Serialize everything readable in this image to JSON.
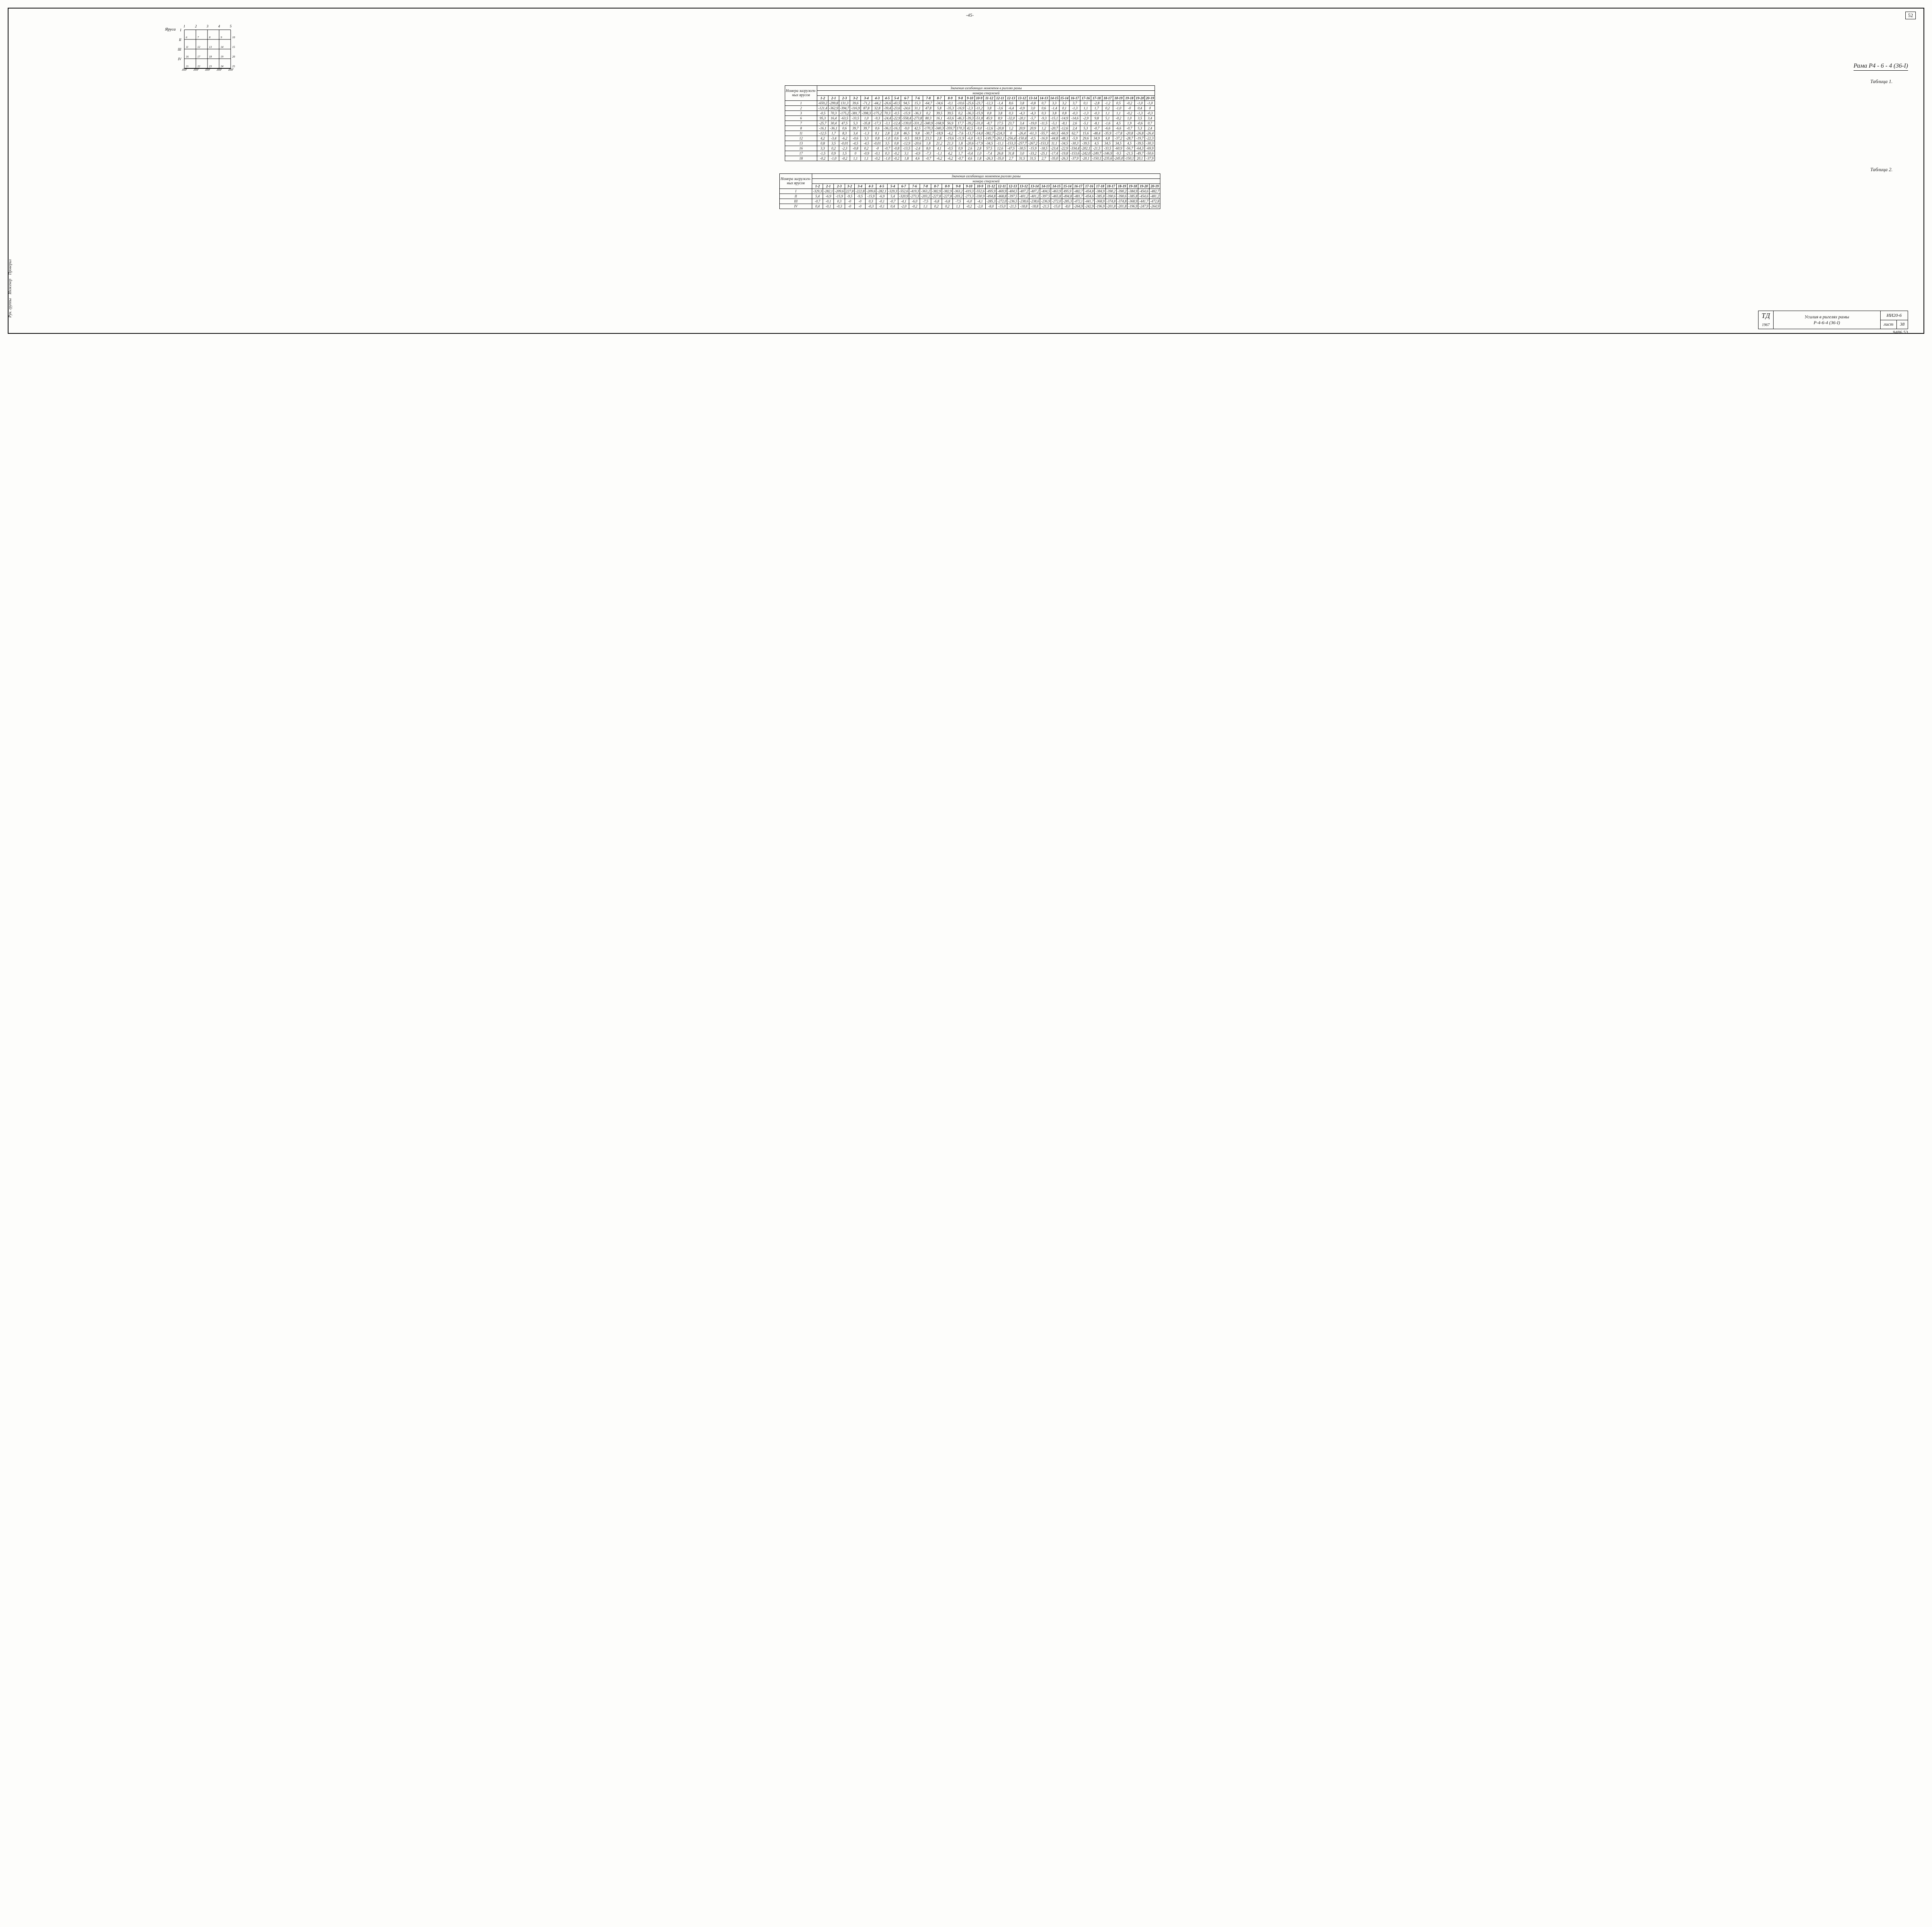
{
  "page_top": "-45-",
  "page_corner": "52",
  "frame_title": "Рама  Р4 - 6 - 4 (36-I)",
  "diagram": {
    "yarus_label": "Яруса",
    "rows": [
      "I",
      "II",
      "III",
      "IV"
    ],
    "top_nums": [
      "1",
      "2",
      "3",
      "4",
      "5"
    ],
    "cell_nums": [
      [
        "6",
        "7",
        "8",
        "9",
        "10"
      ],
      [
        "11",
        "12",
        "13",
        "14",
        "15"
      ],
      [
        "16",
        "17",
        "18",
        "19",
        "20"
      ],
      [
        "21",
        "22",
        "23",
        "24",
        "25"
      ]
    ]
  },
  "table_caption_1": "Таблица 1.",
  "table_caption_2": "Таблица 2.",
  "table_header_main_1": "Значения  изгибающих  моментов  в ригелях  рамы",
  "table_header_main_2": "Значения  изгибающих  моментов  ригелях  рамы",
  "table_header_sub": "номера  стержней",
  "rowhead_label": "Номера загружен-ных ярусов",
  "col_pairs": [
    "1-2",
    "2-1",
    "2-3",
    "3-2",
    "3-4",
    "4-3",
    "4-5",
    "5-4",
    "6-7",
    "7-6",
    "7-8",
    "8-7",
    "8-9",
    "9-8",
    "9-10",
    "10-9",
    "11-12",
    "12-11",
    "12-13",
    "13-12",
    "13-14",
    "14-13",
    "14-15",
    "15-14",
    "16-17",
    "17-16",
    "17-18",
    "18-17",
    "18-19",
    "19-18",
    "19-20",
    "20-19"
  ],
  "table1_rows": [
    {
      "k": "1",
      "v": [
        "-659,2",
        "-299,8",
        "131,3",
        "39,6",
        "-71,2",
        "-44,2",
        "-26,6",
        "-43,5",
        "94,5",
        "15,3",
        "-64,7",
        "-34,6",
        "-0,1",
        "-10,6",
        "-25,6",
        "-23,7",
        "-12,3",
        "-1,4",
        "8,6",
        "3,8",
        "-0,8",
        "0,7",
        "3,3",
        "3,2",
        "3,7",
        "0,1",
        "-2,8",
        "-1,2",
        "0,5",
        "-0,2",
        "-1,0",
        "-1,0"
      ]
    },
    {
      "k": "2",
      "v": [
        "-121,4",
        "-362,9",
        "-394,7",
        "-116,9",
        "87,8",
        "32,8",
        "-39,4",
        "-23,6",
        "-24,6",
        "31,1",
        "47,8",
        "5,8",
        "-35,3",
        "-16,9",
        "-2,3",
        "-11,2",
        "3,8",
        "-3,6",
        "-6,4",
        "-0,9",
        "3,0",
        "0,6",
        "-1,4",
        "0,1",
        "-1,3",
        "1,1",
        "1,7",
        "0,2",
        "-1,0",
        "-0",
        "0,4",
        "0"
      ]
    },
    {
      "k": "3",
      "v": [
        "-0,5",
        "70,3",
        "-175,2",
        "-381,7",
        "-398,3",
        "-175,2",
        "70,3",
        "-0,5",
        "-15,9",
        "-36,3",
        "0,2",
        "39,5",
        "39,5",
        "0,2",
        "-36,3",
        "-15,9",
        "0,8",
        "3,8",
        "0,3",
        "-4,3",
        "-4,3",
        "0,3",
        "3,8",
        "0,8",
        "-0,3",
        "-1,3",
        "-0,3",
        "1,1",
        "1,1",
        "-0,2",
        "-1,3",
        "-0,3"
      ]
    },
    {
      "k": "6",
      "v": [
        "95,3",
        "16,4",
        "-63,5",
        "-33,5",
        "1,0",
        "-9,3",
        "-24,4",
        "-22,9",
        "-558,4",
        "-273,8",
        "80,3",
        "16,1",
        "-63,6",
        "-46,3",
        "-39,3",
        "-51,8",
        "45,9",
        "8,9",
        "-32,0",
        "-20,1",
        "-5,7",
        "-9,3",
        "-15,1",
        "-14,9",
        "-14,6",
        "-2,9",
        "9,8",
        "5,1",
        "-0,2",
        "1,0",
        "3,5",
        "3,4"
      ]
    },
    {
      "k": "7",
      "v": [
        "-25,7",
        "30,4",
        "47,5",
        "5,3",
        "-35,8",
        "-17,3",
        "-3,1",
        "-12,4",
        "-139,0",
        "-331,2",
        "-340,9",
        "-168,9",
        "56,9",
        "17,7",
        "-39,2",
        "-31,0",
        "-8,7",
        "17,5",
        "23,7",
        "3,4",
        "-19,0",
        "-11,5",
        "-5,1",
        "-8,1",
        "2,6",
        "-5,1",
        "-8,1",
        "-1,6",
        "4,5",
        "1,9",
        "-0,6",
        "0,7"
      ]
    },
    {
      "k": "8",
      "v": [
        "-16,1",
        "-36,1",
        "0,6",
        "39,7",
        "39,7",
        "0,6",
        "-36,1",
        "-16,1",
        "-9,0",
        "42,5",
        "-170,3",
        "-340,3",
        "-359,7",
        "170,3",
        "42,5",
        "-9,0",
        "-12,6",
        "-20,8",
        "1,2",
        "20,9",
        "20,9",
        "1,2",
        "-20,7",
        "-12,6",
        "2,4",
        "5,3",
        "-0,7",
        "-6,6",
        "-6,6",
        "-0,7",
        "5,3",
        "2,4"
      ]
    },
    {
      "k": "11",
      "v": [
        "-12,5",
        "1,7",
        "8,3",
        "3,4",
        "-1,3",
        "0,1",
        "2,8",
        "2,8",
        "46,5",
        "9,8",
        "-30,7",
        "-18,9",
        "-4,2",
        "-7,6",
        "-13,7",
        "-14,0",
        "-382,7",
        "-224,3",
        "0",
        "-26,4",
        "-61,3",
        "-55,7",
        "-60,3",
        "-66,9",
        "62,7",
        "15,6",
        "-48,4",
        "-35,9",
        "-17,8",
        "-20,8",
        "-26,8",
        "-26,4"
      ]
    },
    {
      "k": "12",
      "v": [
        "4,2",
        "-3,4",
        "-6,2",
        "-0,6",
        "3,3",
        "0,8",
        "-1,0",
        "0,6",
        "-9,5",
        "18,9",
        "23,3",
        "2,8",
        "-19,6",
        "-11,9",
        "-6,0",
        "-9,5",
        "-149,7",
        "-261,1",
        "-256,4",
        "-150,4",
        "-0,5",
        "-16,9",
        "-44,8",
        "-48,3",
        "-5,9",
        "29,6",
        "34,9",
        "4,8",
        "-37,2",
        "-28,7",
        "-19,7",
        "-22,3"
      ]
    },
    {
      "k": "13",
      "v": [
        "0,8",
        "3,5",
        "-0,01",
        "-4,5",
        "-4,5",
        "-0,01",
        "3,5",
        "0,8",
        "-12,9",
        "-20,6",
        "1,8",
        "21,2",
        "21,3",
        "1,8",
        "-20,6",
        "-17,9",
        "-34,5",
        "-11,1",
        "-153,3",
        "-257,7",
        "-267,2",
        "-153,3",
        "11,1",
        "-34,5",
        "-30,3",
        "-39,5",
        "4,5",
        "34,5",
        "34,5",
        "4,5",
        "-39,5",
        "-30,3"
      ]
    },
    {
      "k": "16",
      "v": [
        "3,3",
        "0,2",
        "-2,3",
        "-0,8",
        "0,2",
        "-0",
        "-0,7",
        "-0,8",
        "-13,5",
        "-2,4",
        "8,0",
        "4,1",
        "-0,5",
        "0,9",
        "2,6",
        "2,8",
        "57,5",
        "12,6",
        "-47,5",
        "-30,5",
        "-15,9",
        "-18,5",
        "-23,4",
        "-22,9",
        "-334,4",
        "-202,1",
        "-21,5",
        "-33,5",
        "-60,9",
        "-56,7",
        "-64,3",
        "-69,9"
      ]
    },
    {
      "k": "17",
      "v": [
        "-1,5",
        "0,9",
        "1,5",
        "0",
        "-0,9",
        "-0,1",
        "0,3",
        "-0,2",
        "3,1",
        "-4,9",
        "-7,3",
        "-1,1",
        "4,2",
        "1,7",
        "-0,4",
        "1,0",
        "-7,4",
        "26,8",
        "31,8",
        "3,0",
        "-33,2",
        "-25,1",
        "-17,4",
        "-19,8",
        "-153,6",
        "-242,0",
        "-249,7",
        "-146,9",
        "-9,5",
        "-21,5",
        "-49,7",
        "-50,6"
      ]
    },
    {
      "k": "18",
      "v": [
        "-0,2",
        "-1,0",
        "-0,2",
        "1,1",
        "1,1",
        "-0,2",
        "-1,0",
        "-0,2",
        "1,8",
        "4,6",
        "-0,7",
        "-6,2",
        "-6,2",
        "-0,7",
        "4,6",
        "1,8",
        "-26,3",
        "-35,0",
        "2,7",
        "31,5",
        "31,5",
        "2,7",
        "-35,0",
        "-26,3",
        "-37,9",
        "-20,1",
        "-150,1",
        "-235,6",
        "-245,0",
        "-150,1",
        "20,1",
        "-37,9"
      ]
    }
  ],
  "table2_rows": [
    {
      "k": "I",
      "v": [
        "-329,3",
        "-282,1",
        "-209,6",
        "227,8",
        "-222,8",
        "-209,6",
        "-282,1",
        "-329,3",
        "-552,6",
        "-419,3",
        "-363,2",
        "-382,9",
        "-382,9",
        "-363,2",
        "-419,3",
        "-552,6",
        "-495,9",
        "-469,9",
        "-404,5",
        "-407,2",
        "-407,2",
        "-404,5",
        "-463,9",
        "495,9",
        "-482,7",
        "-454,8",
        "-384,9",
        "-390,2",
        "-390,2",
        "-384,9",
        "-454,6",
        "-482,7"
      ]
    },
    {
      "k": "II",
      "v": [
        "5,4",
        "-6,9",
        "-15,9",
        "-9,5",
        "-9,5",
        "-15,9",
        "-6,9",
        "5,4",
        "-320,9",
        "-273,3",
        "-203,2",
        "-227,8",
        "-227,8",
        "-203,2",
        "-273,3",
        "-330,9",
        "-494,8",
        "-468,8",
        "-397,5",
        "-401,2",
        "-401,2",
        "-397,5",
        "-465,8",
        "-494,8",
        "-481,7",
        "-454,6",
        "-385,8",
        "-390,6",
        "-390,6",
        "-385,8",
        "-454,6",
        "-481,2"
      ]
    },
    {
      "k": "III",
      "v": [
        "-0,7",
        "-0,1",
        "0,3",
        "-0",
        "-0",
        "0,3",
        "-0,1",
        "-0,7",
        "-4,1",
        "-6,0",
        "-7,5",
        "-6,8",
        "-6,8",
        "-7,5",
        "-6,0",
        "-4,1",
        "-285,3",
        "-272,0",
        "-236,5",
        "-238,6",
        "-238,6",
        "-236,9",
        "-272,0",
        "-285,3",
        "-472,1",
        "-441,7",
        "-368,9",
        "-374,8",
        "-374,8",
        "-368,9",
        "-441,7",
        "-472,8"
      ]
    },
    {
      "k": "IV",
      "v": [
        "0,4",
        "-0,1",
        "-0,3",
        "-0",
        "-0",
        "-0,3",
        "-0,1",
        "0,4",
        "-2,0",
        "-0,2",
        "1,1",
        "0,2",
        "0,2",
        "1,1",
        "-0,2",
        "-2,0",
        "-8,0",
        "-15,0",
        "-21,5",
        "-18,8",
        "-18,8",
        "-21,5",
        "-15,0",
        "-8,0",
        "-264,9",
        "-242,9",
        "-196,9",
        "-201,8",
        "-201,8",
        "-196,9",
        "-247,9",
        "-264,9"
      ]
    }
  ],
  "title_block": {
    "logo": "ТД",
    "year": "1967",
    "title1": "Усилия в ригелях рамы",
    "title2": "Р-4-6-4 (36-I)",
    "series": "ИИ20-6",
    "sheet_label": "лист",
    "sheet_num": "38"
  },
  "footer": "9486   53",
  "left_labels": [
    "Рук. группы",
    "Инженер",
    "Проверил"
  ]
}
